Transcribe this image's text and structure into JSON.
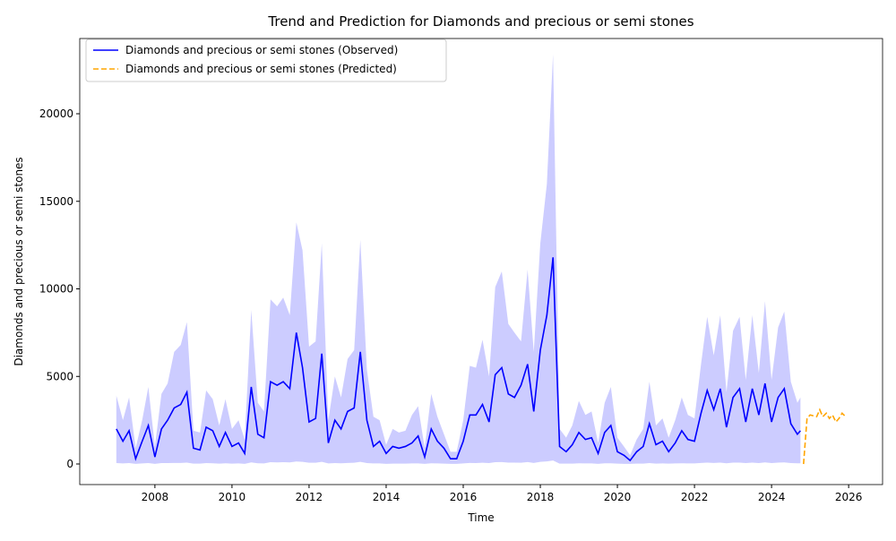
{
  "chart_data": {
    "type": "line",
    "title": "Trend and Prediction for Diamonds and precious or semi stones",
    "xlabel": "Time",
    "ylabel": "Diamonds and precious or semi stones",
    "xlim": [
      2006.05,
      2026.88
    ],
    "ylim": [
      -1176,
      24297
    ],
    "xticks": [
      2008,
      2010,
      2012,
      2014,
      2016,
      2018,
      2020,
      2022,
      2024,
      2026
    ],
    "yticks": [
      0,
      5000,
      10000,
      15000,
      20000
    ],
    "legend": "upper left",
    "band": {
      "color": "#0000ff",
      "opacity": 0.2,
      "upper": [
        3900,
        2500,
        3800,
        900,
        2500,
        4400,
        1000,
        4000,
        4600,
        6400,
        6800,
        8100,
        1900,
        1800,
        4200,
        3700,
        2200,
        3700,
        2000,
        2500,
        1400,
        8800,
        3500,
        3000,
        9400,
        9000,
        9500,
        8500,
        13800,
        12200,
        6700,
        7000,
        12600,
        2500,
        5000,
        3800,
        6000,
        6500,
        12800,
        5400,
        2700,
        2500,
        1100,
        2000,
        1800,
        1900,
        2800,
        3300,
        900,
        4000,
        2700,
        1700,
        700,
        700,
        2500,
        5600,
        5500,
        7100,
        5000,
        10100,
        11000,
        8000,
        7500,
        7000,
        11100,
        6400,
        12600,
        16000,
        23400,
        2000,
        1500,
        2200,
        3600,
        2800,
        3000,
        1200,
        3500,
        4400,
        1500,
        1000,
        500,
        1400,
        2000,
        4700,
        2200,
        2600,
        1500,
        2500,
        3800,
        2800,
        2600,
        5700,
        8400,
        6200,
        8500,
        4100,
        7600,
        8400,
        4800,
        8500,
        5200,
        9300,
        4800,
        7800,
        8700,
        4700,
        3500,
        3800
      ],
      "lower": [
        50,
        30,
        50,
        10,
        30,
        50,
        10,
        50,
        50,
        60,
        60,
        80,
        20,
        20,
        50,
        40,
        20,
        40,
        20,
        30,
        10,
        90,
        40,
        30,
        100,
        90,
        100,
        90,
        140,
        120,
        70,
        70,
        120,
        30,
        50,
        40,
        60,
        70,
        120,
        50,
        30,
        30,
        10,
        20,
        20,
        20,
        30,
        30,
        10,
        40,
        30,
        20,
        10,
        10,
        30,
        60,
        50,
        70,
        50,
        100,
        110,
        80,
        80,
        70,
        110,
        60,
        120,
        150,
        200,
        20,
        20,
        20,
        40,
        30,
        30,
        10,
        40,
        40,
        20,
        10,
        10,
        20,
        20,
        50,
        20,
        30,
        20,
        30,
        40,
        30,
        30,
        60,
        80,
        60,
        80,
        40,
        80,
        80,
        50,
        80,
        50,
        90,
        50,
        80,
        90,
        50,
        40,
        40
      ]
    },
    "series": [
      {
        "name": "Diamonds and precious or semi stones (Observed)",
        "color": "#0000ff",
        "dash": "solid",
        "x": [
          2007,
          2007.17,
          2007.33,
          2007.5,
          2007.67,
          2007.83,
          2008,
          2008.17,
          2008.33,
          2008.5,
          2008.67,
          2008.83,
          2009,
          2009.17,
          2009.33,
          2009.5,
          2009.67,
          2009.83,
          2010,
          2010.17,
          2010.33,
          2010.5,
          2010.67,
          2010.83,
          2011,
          2011.17,
          2011.33,
          2011.5,
          2011.67,
          2011.83,
          2012,
          2012.17,
          2012.33,
          2012.5,
          2012.67,
          2012.83,
          2013,
          2013.17,
          2013.33,
          2013.5,
          2013.67,
          2013.83,
          2014,
          2014.17,
          2014.33,
          2014.5,
          2014.67,
          2014.83,
          2015,
          2015.17,
          2015.33,
          2015.5,
          2015.67,
          2015.83,
          2016,
          2016.17,
          2016.33,
          2016.5,
          2016.67,
          2016.83,
          2017,
          2017.17,
          2017.33,
          2017.5,
          2017.67,
          2017.83,
          2018,
          2018.17,
          2018.33,
          2018.5,
          2018.67,
          2018.83,
          2019,
          2019.17,
          2019.33,
          2019.5,
          2019.67,
          2019.83,
          2020,
          2020.17,
          2020.33,
          2020.5,
          2020.67,
          2020.83,
          2021,
          2021.17,
          2021.33,
          2021.5,
          2021.67,
          2021.83,
          2022,
          2022.17,
          2022.33,
          2022.5,
          2022.67,
          2022.83,
          2023,
          2023.17,
          2023.33,
          2023.5,
          2023.67,
          2023.83,
          2024,
          2024.17,
          2024.33,
          2024.5,
          2024.67,
          2024.75
        ],
        "values": [
          2000,
          1300,
          1900,
          300,
          1300,
          2200,
          400,
          2000,
          2500,
          3200,
          3400,
          4100,
          900,
          800,
          2100,
          1900,
          1000,
          1800,
          1000,
          1200,
          600,
          4400,
          1700,
          1500,
          4700,
          4500,
          4700,
          4300,
          7500,
          5500,
          2400,
          2600,
          6300,
          1200,
          2500,
          2000,
          3000,
          3200,
          6400,
          2500,
          1000,
          1300,
          600,
          1000,
          900,
          1000,
          1200,
          1600,
          400,
          2000,
          1300,
          900,
          300,
          300,
          1300,
          2800,
          2800,
          3400,
          2400,
          5100,
          5500,
          4000,
          3800,
          4500,
          5700,
          3000,
          6500,
          8500,
          11800,
          1000,
          700,
          1100,
          1800,
          1400,
          1500,
          600,
          1800,
          2200,
          700,
          500,
          200,
          700,
          1000,
          2300,
          1100,
          1300,
          700,
          1200,
          1900,
          1400,
          1300,
          2900,
          4200,
          3100,
          4300,
          2100,
          3800,
          4300,
          2400,
          4300,
          2800,
          4600,
          2400,
          3800,
          4300,
          2300,
          1700,
          1900
        ]
      },
      {
        "name": "Diamonds and precious or semi stones (Predicted)",
        "color": "#ffa500",
        "dash": "dashed",
        "x": [
          2024.83,
          2024.92,
          2025,
          2025.17,
          2025.25,
          2025.33,
          2025.42,
          2025.5,
          2025.58,
          2025.67,
          2025.75,
          2025.83,
          2025.92
        ],
        "values": [
          0,
          2600,
          2800,
          2700,
          3100,
          2700,
          2900,
          2600,
          2800,
          2400,
          2600,
          2900,
          2700
        ]
      }
    ]
  }
}
